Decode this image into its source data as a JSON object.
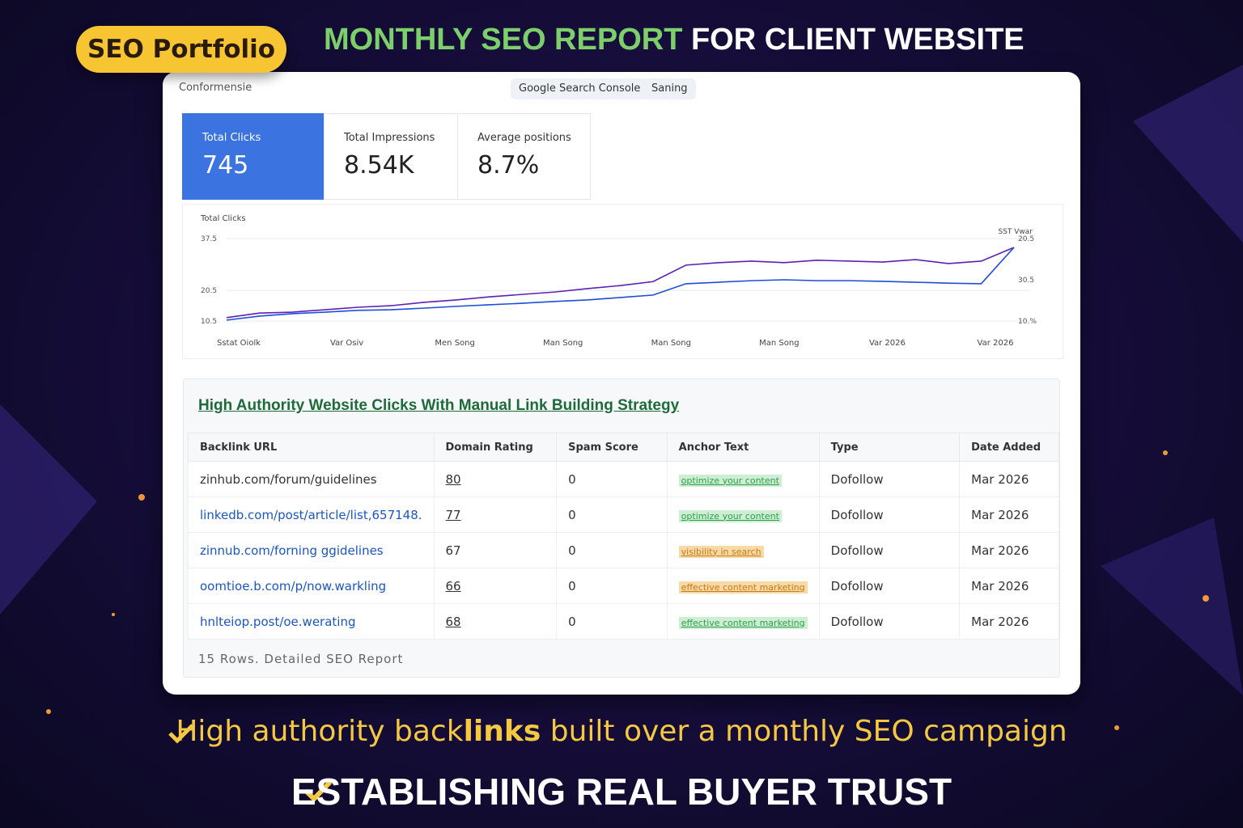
{
  "header": {
    "badge": "SEO Portfolio",
    "title_highlight": "MONTHLY SEO REPORT",
    "title_rest": "FOR CLIENT WEBSITE"
  },
  "toolbar": {
    "label": "Conformensie",
    "buttons": [
      "Google Search Console",
      "Saning"
    ]
  },
  "metrics": [
    {
      "label": "Total Clicks",
      "value": "745"
    },
    {
      "label": "Total Impressions",
      "value": "8.54K"
    },
    {
      "label": "Average positions",
      "value": "8.7%"
    }
  ],
  "chart_data": {
    "type": "line",
    "title": "Total Clicks",
    "legend_label": "SST Vwar",
    "x_labels": [
      "Sstat Oiolk",
      "Var Osiv",
      "Men Song",
      "Man Song",
      "Man Song",
      "Man Song",
      "Var 2026",
      "Var 2026"
    ],
    "ylim": [
      10.5,
      37.5
    ],
    "yticks": [
      10.5,
      20.5,
      37.5
    ],
    "right_labels": [
      "20.5",
      "30.5",
      "10.%"
    ],
    "grid": true,
    "series": [
      {
        "color": "#5b21b6",
        "values": [
          11.6,
          13.1,
          13.4,
          14.2,
          15.0,
          15.5,
          16.6,
          17.4,
          18.4,
          19.2,
          20.0,
          21.1,
          22.1,
          23.4,
          28.8,
          29.6,
          30.1,
          29.6,
          30.4,
          30.1,
          29.8,
          30.6,
          29.3,
          30.1,
          34.6
        ]
      },
      {
        "color": "#1d4ed8",
        "values": [
          10.8,
          12.1,
          12.9,
          13.4,
          14.0,
          14.2,
          14.7,
          15.3,
          15.8,
          16.3,
          16.9,
          17.4,
          18.2,
          19.0,
          22.7,
          23.2,
          23.7,
          24.0,
          23.7,
          23.7,
          23.5,
          23.2,
          22.9,
          22.7,
          34.6
        ]
      }
    ]
  },
  "table": {
    "title": "High Authority Website Clicks With Manual Link Building Strategy",
    "columns": [
      "Backlink URL",
      "Domain Rating",
      "Spam Score",
      "Anchor Text",
      "Type",
      "Date Added"
    ],
    "rows": [
      [
        "zinhub.com/forum/guidelines",
        "80",
        "0",
        "optimize your content",
        "Dofollow",
        "Mar 2026"
      ],
      [
        "linkedb.com/post/article/list,657148.",
        "77",
        "0",
        "optimize your content",
        "Dofollow",
        "Mar 2026"
      ],
      [
        "zinnub.com/forning ggidelines",
        "67",
        "0",
        "visibility in search",
        "Dofollow",
        "Mar 2026"
      ],
      [
        "oomtioe.b.com/p/now.warkling",
        "66",
        "0",
        "effective content marketing",
        "Dofollow",
        "Mar 2026"
      ],
      [
        "hnlteiop.post/oe.werating",
        "68",
        "0",
        "effective content marketing",
        "Dofollow",
        "Mar 2026"
      ]
    ],
    "anchor_colors": [
      "green",
      "green",
      "orange",
      "orange",
      "green"
    ],
    "footer": "15 Rows. Detailed SEO Report"
  },
  "footer": {
    "line1_parts": [
      "High authority back",
      "links",
      "built over a monthly SEO campaign"
    ],
    "line2": "ESTABLISHING REAL BUYER TRUST"
  }
}
